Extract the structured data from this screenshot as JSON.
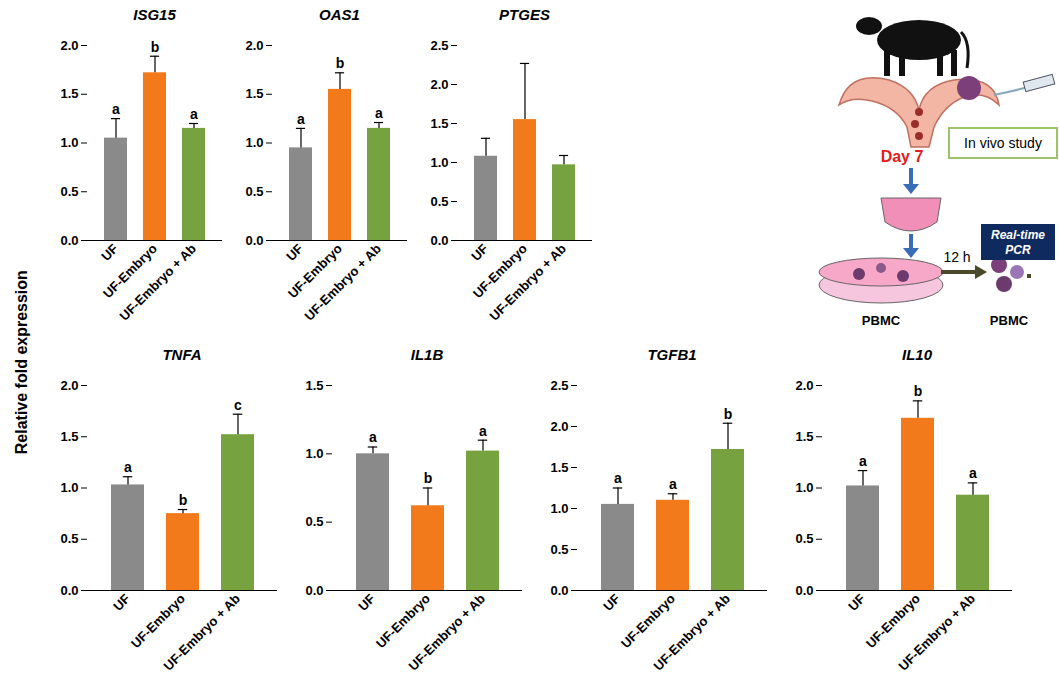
{
  "y_label": "Relative fold expression",
  "diagram": {
    "day": "Day 7",
    "study": "In vivo study",
    "time": "12 h",
    "cells": [
      "PBMC",
      "PBMC"
    ],
    "assay": "Real-time PCR"
  },
  "chart_data": [
    {
      "type": "bar",
      "title": "ISG15",
      "categories": [
        "UF",
        "UF-Embryo",
        "UF-Embryo + Ab"
      ],
      "values": [
        1.05,
        1.72,
        1.15
      ],
      "errors": [
        0.2,
        0.17,
        0.05
      ],
      "letters": [
        "a",
        "b",
        "a"
      ],
      "colors": [
        "#8a8a8a",
        "#f27a1a",
        "#76a33f"
      ],
      "ylim": [
        0,
        2
      ],
      "yticks": [
        {
          "value": 0,
          "label": "0.0"
        },
        0.5,
        {
          "value": 1,
          "label": "1.0"
        },
        1.5,
        {
          "value": 2,
          "label": "2.0"
        }
      ]
    },
    {
      "type": "bar",
      "title": "OAS1",
      "categories": [
        "UF",
        "UF-Embryo",
        "UF-Embryo + Ab"
      ],
      "values": [
        0.95,
        1.55,
        1.15
      ],
      "errors": [
        0.2,
        0.17,
        0.06
      ],
      "letters": [
        "a",
        "b",
        "a"
      ],
      "colors": [
        "#8a8a8a",
        "#f27a1a",
        "#76a33f"
      ],
      "ylim": [
        0,
        2
      ],
      "yticks": [
        {
          "value": 0,
          "label": "0.0"
        },
        0.5,
        {
          "value": 1,
          "label": "1.0"
        },
        1.5,
        {
          "value": 2,
          "label": "2.0"
        }
      ]
    },
    {
      "type": "bar",
      "title": "PTGES",
      "categories": [
        "UF",
        "UF-Embryo",
        "UF-Embryo + Ab"
      ],
      "values": [
        1.08,
        1.55,
        0.97
      ],
      "errors": [
        0.23,
        0.72,
        0.12
      ],
      "colors": [
        "#8a8a8a",
        "#f27a1a",
        "#76a33f"
      ],
      "ylim": [
        0,
        2.5
      ],
      "yticks": [
        {
          "value": 0,
          "label": "0.0"
        },
        0.5,
        {
          "value": 1,
          "label": "1.0"
        },
        1.5,
        {
          "value": 2,
          "label": "2.0"
        },
        2.5
      ]
    },
    {
      "type": "bar",
      "title": "TNFA",
      "categories": [
        "UF",
        "UF-Embryo",
        "UF-Embryo + Ab"
      ],
      "values": [
        1.03,
        0.75,
        1.52
      ],
      "errors": [
        0.08,
        0.04,
        0.2
      ],
      "letters": [
        "a",
        "b",
        "c"
      ],
      "colors": [
        "#8a8a8a",
        "#f27a1a",
        "#76a33f"
      ],
      "ylim": [
        0,
        2
      ],
      "yticks": [
        {
          "value": 0,
          "label": "0.0"
        },
        0.5,
        {
          "value": 1,
          "label": "1.0"
        },
        1.5,
        {
          "value": 2,
          "label": "2.0"
        }
      ]
    },
    {
      "type": "bar",
      "title": "IL1B",
      "categories": [
        "UF",
        "UF-Embryo",
        "UF-Embryo + Ab"
      ],
      "values": [
        1.0,
        0.62,
        1.02
      ],
      "errors": [
        0.05,
        0.13,
        0.08
      ],
      "letters": [
        "a",
        "b",
        "a"
      ],
      "colors": [
        "#8a8a8a",
        "#f27a1a",
        "#76a33f"
      ],
      "ylim": [
        0,
        1.5
      ],
      "yticks": [
        {
          "value": 0,
          "label": "0.0"
        },
        0.5,
        {
          "value": 1,
          "label": "1.0"
        },
        1.5
      ]
    },
    {
      "type": "bar",
      "title": "TGFB1",
      "categories": [
        "UF",
        "UF-Embryo",
        "UF-Embryo + Ab"
      ],
      "values": [
        1.05,
        1.1,
        1.72
      ],
      "errors": [
        0.2,
        0.08,
        0.32
      ],
      "letters": [
        "a",
        "a",
        "b"
      ],
      "colors": [
        "#8a8a8a",
        "#f27a1a",
        "#76a33f"
      ],
      "ylim": [
        0,
        2.5
      ],
      "yticks": [
        {
          "value": 0,
          "label": "0.0"
        },
        0.5,
        {
          "value": 1,
          "label": "1.0"
        },
        1.5,
        {
          "value": 2,
          "label": "2.0"
        },
        2.5
      ]
    },
    {
      "type": "bar",
      "title": "IL10",
      "categories": [
        "UF",
        "UF-Embryo",
        "UF-Embryo + Ab"
      ],
      "values": [
        1.02,
        1.68,
        0.93
      ],
      "errors": [
        0.15,
        0.17,
        0.12
      ],
      "letters": [
        "a",
        "b",
        "a"
      ],
      "colors": [
        "#8a8a8a",
        "#f27a1a",
        "#76a33f"
      ],
      "ylim": [
        0,
        2
      ],
      "yticks": [
        {
          "value": 0,
          "label": "0.0"
        },
        0.5,
        {
          "value": 1,
          "label": "1.0"
        },
        1.5,
        {
          "value": 2,
          "label": "2.0"
        }
      ]
    }
  ]
}
